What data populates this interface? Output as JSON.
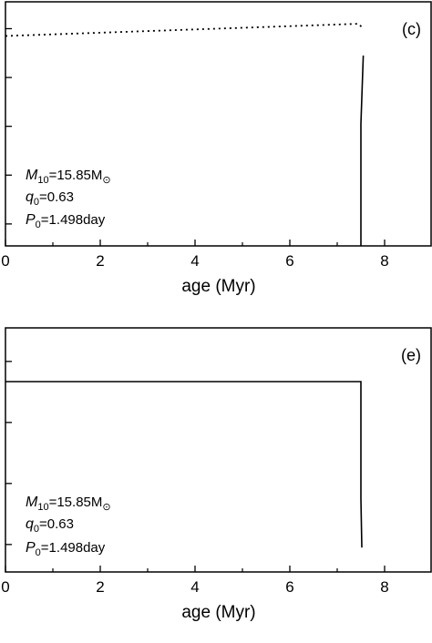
{
  "chart_data": [
    {
      "type": "line",
      "panel_label": "(c)",
      "xlabel": "age (Myr)",
      "xlim": [
        0,
        9
      ],
      "x_ticks": [
        0,
        2,
        4,
        6,
        8
      ],
      "ylim": [
        0,
        1
      ],
      "y_tick_count": 5,
      "grid": false,
      "series": [
        {
          "style": "dotted",
          "x": [
            0,
            7.45,
            7.55
          ],
          "y": [
            0.86,
            0.91,
            0.89
          ]
        },
        {
          "style": "solid",
          "x": [
            7.5,
            7.5,
            7.55
          ],
          "y": [
            0.0,
            0.5,
            0.78
          ]
        }
      ],
      "annotations": [
        {
          "italic": "M",
          "sub": "10",
          "text": "=15.85M",
          "symbol": "⊙"
        },
        {
          "italic": "q",
          "sub": "0",
          "text": "=0.63"
        },
        {
          "italic": "P",
          "sub": "0",
          "text": "=1.498day"
        }
      ]
    },
    {
      "type": "line",
      "panel_label": "(e)",
      "xlabel": "age (Myr)",
      "xlim": [
        0,
        9
      ],
      "x_ticks": [
        0,
        2,
        4,
        6,
        8
      ],
      "ylim": [
        0,
        1
      ],
      "y_tick_count": 4,
      "grid": false,
      "series": [
        {
          "style": "solid",
          "x": [
            0,
            7.5,
            7.5,
            7.52
          ],
          "y": [
            0.78,
            0.78,
            0.3,
            0.1
          ]
        }
      ],
      "annotations": [
        {
          "italic": "M",
          "sub": "10",
          "text": "=15.85M",
          "symbol": "⊙"
        },
        {
          "italic": "q",
          "sub": "0",
          "text": "=0.63"
        },
        {
          "italic": "P",
          "sub": "0",
          "text": "=1.498day"
        }
      ]
    }
  ]
}
